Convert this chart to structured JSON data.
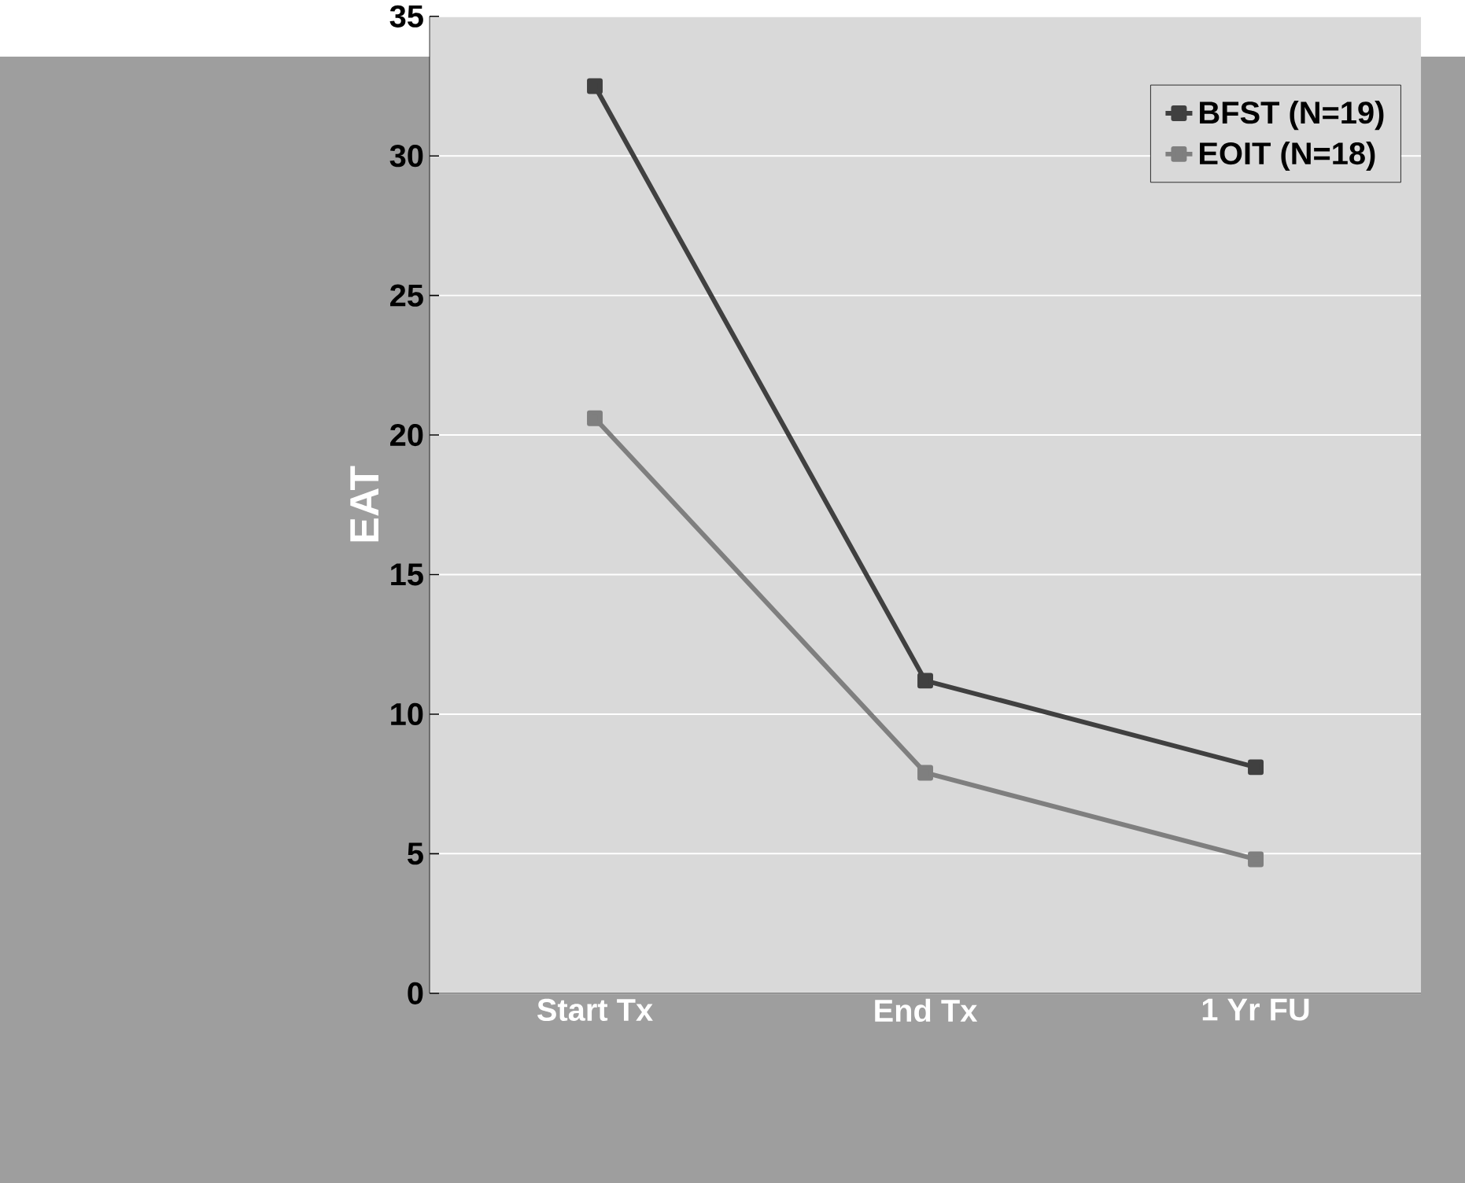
{
  "chart_data": {
    "type": "line",
    "ylabel": "EAT",
    "categories": [
      "Start Tx",
      "End Tx",
      "1 Yr FU"
    ],
    "series": [
      {
        "name": "BFST (N=19)",
        "color": "#404040",
        "values": [
          32.5,
          11.2,
          8.1
        ]
      },
      {
        "name": "EOIT (N=18)",
        "color": "#7f7f7f",
        "values": [
          20.6,
          7.9,
          4.8
        ]
      }
    ],
    "ylim": [
      0,
      35
    ],
    "yticks": [
      0,
      5,
      10,
      15,
      20,
      25,
      30,
      35
    ],
    "grid": "y",
    "legend": "top right",
    "marker": "square",
    "line_style": "solid"
  }
}
